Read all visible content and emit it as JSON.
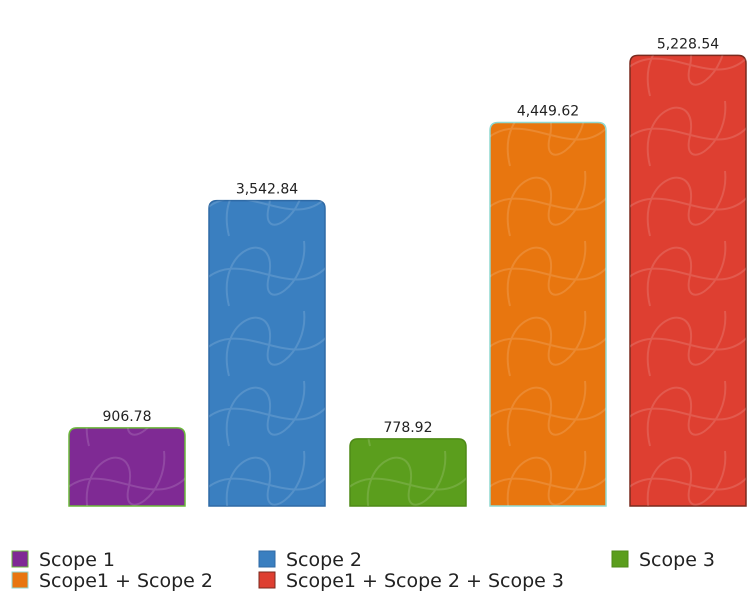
{
  "chart_data": {
    "type": "bar",
    "title": "",
    "xlabel": "",
    "ylabel": "",
    "ylim": [
      0,
      5500
    ],
    "grid": false,
    "legend_position": "bottom",
    "categories": [
      "Scope 1",
      "Scope 2",
      "Scope 3",
      "Scope1 + Scope 2",
      "Scope1 + Scope 2 + Scope 3"
    ],
    "values": [
      906.78,
      3542.84,
      778.92,
      4449.62,
      5228.54
    ],
    "data_labels": [
      "906.78",
      "3,542.84",
      "778.92",
      "4,449.62",
      "5,228.54"
    ],
    "colors": [
      "#7f2a94",
      "#3a7fc0",
      "#5b9e1d",
      "#e8760f",
      "#de3f31"
    ],
    "border_colors": [
      "#6ab83a",
      "#2f6aa5",
      "#4e8a17",
      "#8fd8d0",
      "#7a2a1e"
    ],
    "legend": [
      {
        "label": "Scope 1",
        "color": "#7f2a94"
      },
      {
        "label": "Scope 2",
        "color": "#3a7fc0"
      },
      {
        "label": "Scope 3",
        "color": "#5b9e1d"
      },
      {
        "label": "Scope1 + Scope 2",
        "color": "#e8760f"
      },
      {
        "label": "Scope1 + Scope 2 + Scope 3",
        "color": "#de3f31"
      }
    ]
  }
}
